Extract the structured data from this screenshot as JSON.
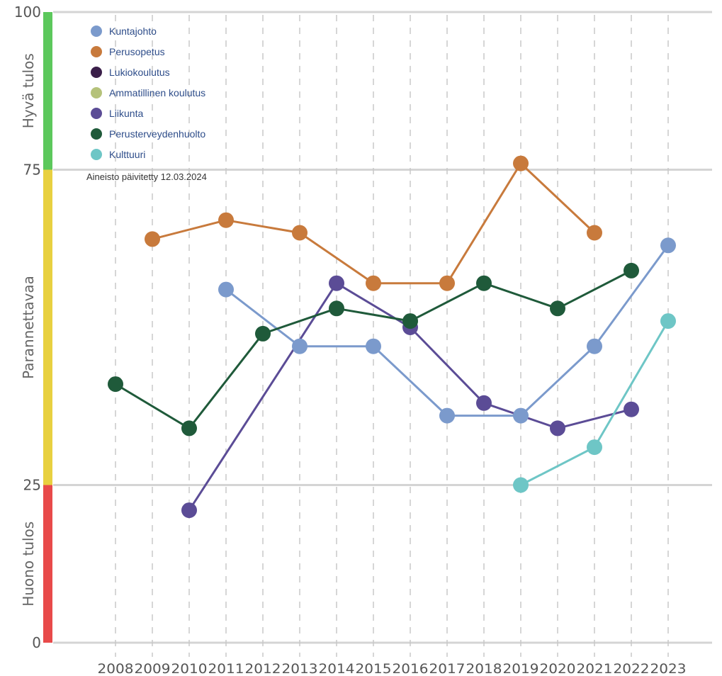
{
  "chart_data": {
    "type": "line",
    "x": [
      "2008",
      "2009",
      "2010",
      "2011",
      "2012",
      "2013",
      "2014",
      "2015",
      "2016",
      "2017",
      "2018",
      "2019",
      "2020",
      "2021",
      "2022",
      "2023"
    ],
    "ylim": [
      0,
      100
    ],
    "yticks": [
      "0",
      "25",
      "75",
      "100"
    ],
    "grid": true,
    "legend_position": "top-left",
    "note": "Aineisto päivitetty 12.03.2024",
    "bands": [
      {
        "label": "Huono tulos",
        "from": 0,
        "to": 25,
        "color": "#e84a4a"
      },
      {
        "label": "Parannettavaa",
        "from": 25,
        "to": 75,
        "color": "#e8d040"
      },
      {
        "label": "Hyvä tulos",
        "from": 75,
        "to": 100,
        "color": "#5cc85c"
      }
    ],
    "series": [
      {
        "name": "Kuntajohto",
        "color": "#7b9acc",
        "values": [
          null,
          null,
          null,
          56,
          null,
          47,
          null,
          47,
          null,
          36,
          null,
          36,
          null,
          47,
          null,
          63
        ]
      },
      {
        "name": "Perusopetus",
        "color": "#c87a3c",
        "values": [
          null,
          64,
          null,
          67,
          null,
          65,
          null,
          57,
          null,
          57,
          null,
          76,
          null,
          65,
          null,
          null
        ]
      },
      {
        "name": "Lukiokoulutus",
        "color": "#3b1f4a",
        "values": [
          null,
          null,
          null,
          null,
          null,
          null,
          null,
          null,
          null,
          null,
          null,
          null,
          null,
          null,
          null,
          null
        ]
      },
      {
        "name": "Ammatillinen koulutus",
        "color": "#b5c27a",
        "values": [
          null,
          null,
          null,
          null,
          null,
          null,
          null,
          null,
          null,
          null,
          null,
          null,
          null,
          null,
          null,
          null
        ]
      },
      {
        "name": "Liikunta",
        "color": "#5b4c96",
        "values": [
          null,
          null,
          21,
          null,
          null,
          null,
          57,
          null,
          50,
          null,
          38,
          null,
          34,
          null,
          37,
          null
        ]
      },
      {
        "name": "Perusterveydenhuolto",
        "color": "#1f5a3a",
        "values": [
          41,
          null,
          34,
          null,
          49,
          null,
          53,
          null,
          51,
          null,
          57,
          null,
          53,
          null,
          59,
          null
        ]
      },
      {
        "name": "Kulttuuri",
        "color": "#6ec6c6",
        "values": [
          null,
          null,
          null,
          null,
          null,
          null,
          null,
          null,
          null,
          null,
          null,
          25,
          null,
          31,
          null,
          51
        ]
      }
    ]
  }
}
